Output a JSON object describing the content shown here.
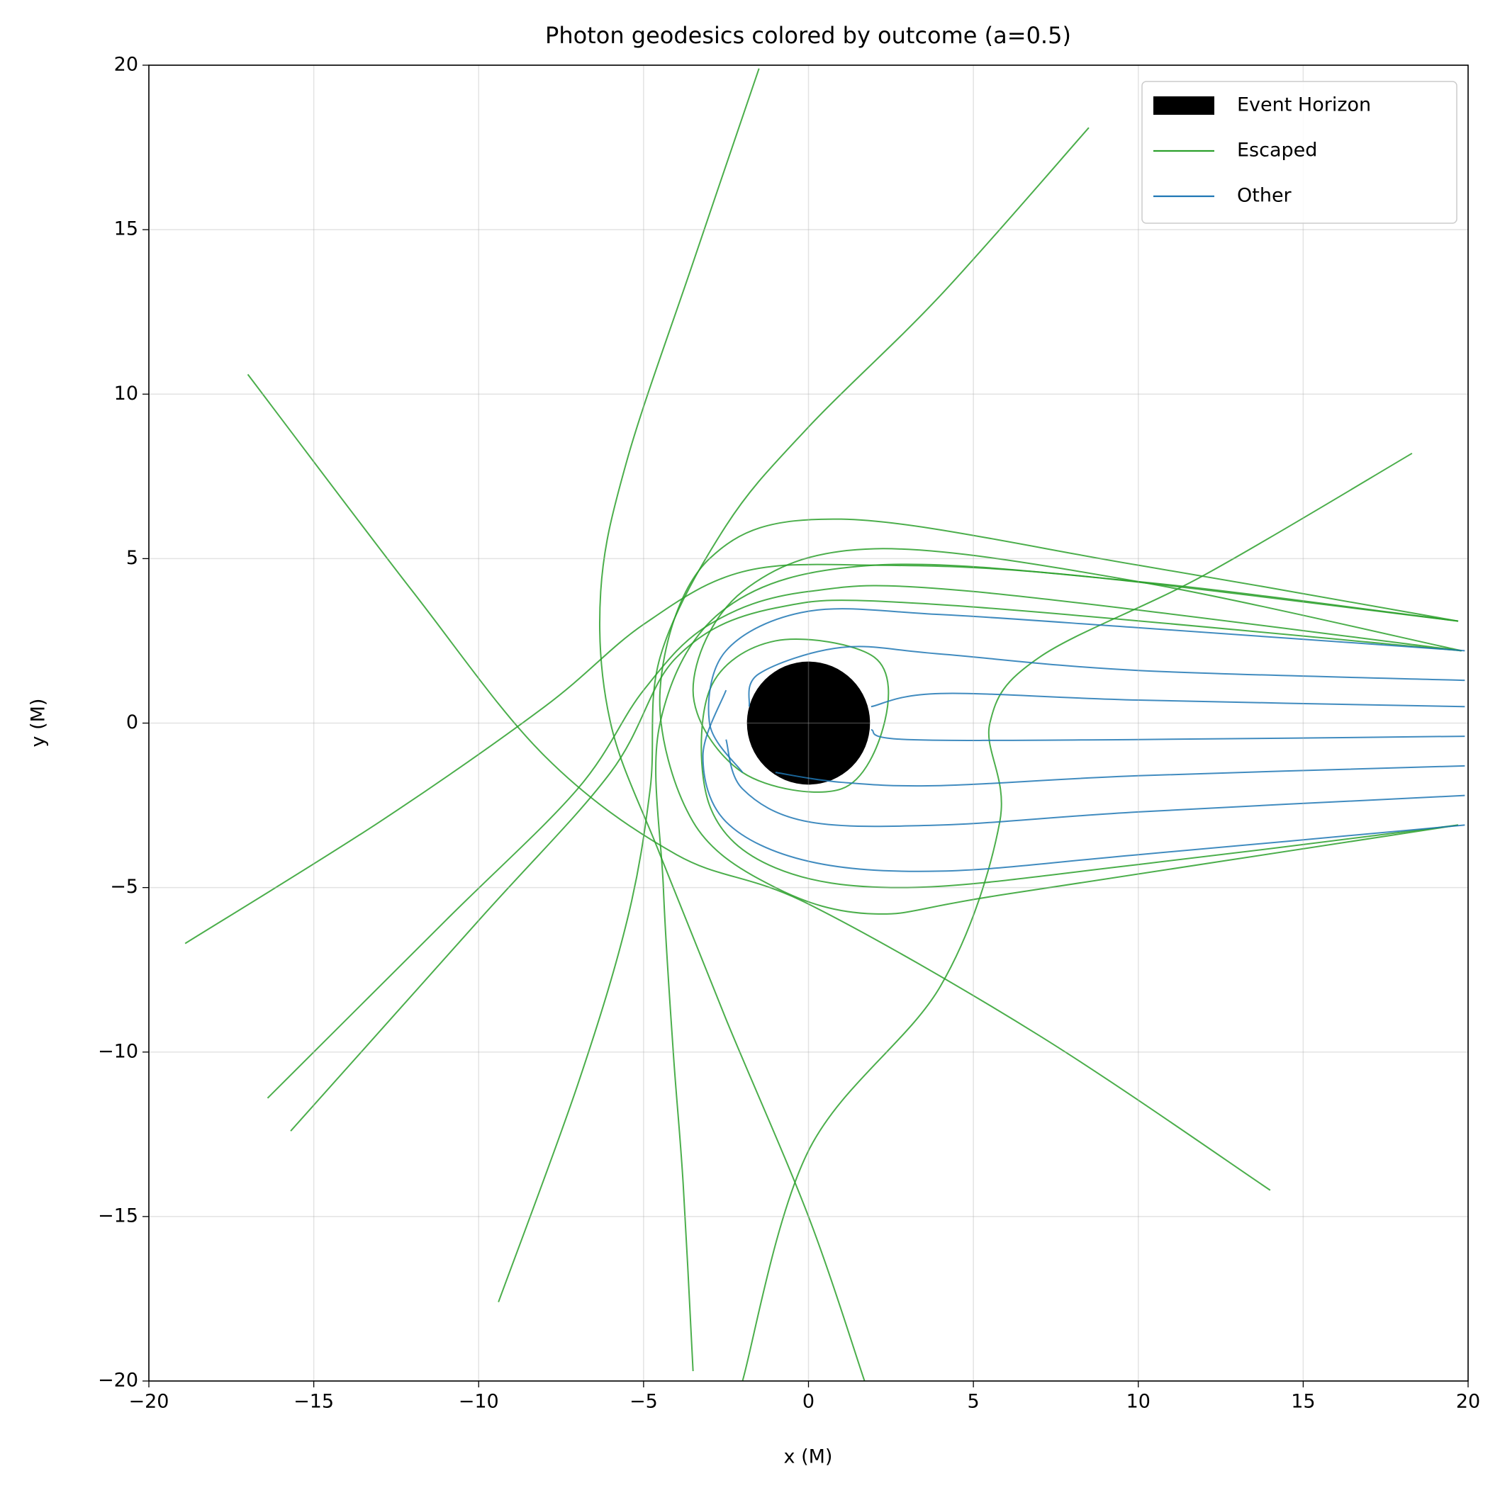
{
  "chart_data": {
    "type": "trajectories",
    "title": "Photon geodesics colored by outcome (a=0.5)",
    "xlabel": "x (M)",
    "ylabel": "y (M)",
    "xlim": [
      -20,
      20
    ],
    "ylim": [
      -20,
      20
    ],
    "xticks": [
      {
        "value": -20,
        "label": "−20"
      },
      {
        "value": -15,
        "label": "−15"
      },
      {
        "value": -10,
        "label": "−10"
      },
      {
        "value": -5,
        "label": "−5"
      },
      0,
      5,
      10,
      15,
      20
    ],
    "yticks": [
      {
        "value": -20,
        "label": "−20"
      },
      {
        "value": -15,
        "label": "−15"
      },
      {
        "value": -10,
        "label": "−10"
      },
      {
        "value": -5,
        "label": "−5"
      },
      0,
      5,
      10,
      15,
      20
    ],
    "grid": true,
    "legend": "upper right",
    "horizon": {
      "name": "Event Horizon",
      "radius": 1.866,
      "color": "#000000"
    },
    "series": [
      {
        "name": "Escaped",
        "color": "#2ca02c",
        "lines": [
          {
            "x": [
              -1.5,
              -3.5,
              -5.5,
              -6.3,
              -6,
              -4.5,
              -2.5,
              0,
              1.7
            ],
            "y": [
              19.9,
              14,
              8,
              4,
              0,
              -4,
              -9,
              -15,
              -20
            ]
          },
          {
            "x": [
              8.5,
              4,
              0,
              -2.5,
              -4.5,
              -4.8,
              -5.5,
              -7,
              -9.4
            ],
            "y": [
              18.1,
              13,
              9,
              6,
              2,
              -2,
              -6,
              -11,
              -17.6
            ]
          },
          {
            "x": [
              19.7,
              10,
              2,
              -2.5,
              -4.5,
              -4.4,
              -4.1,
              -3.8,
              -3.5
            ],
            "y": [
              3.1,
              4.3,
              4.8,
              3.5,
              0,
              -5,
              -10,
              -14,
              -19.7
            ]
          },
          {
            "x": [
              -17,
              -12,
              -8,
              -4,
              0,
              7,
              14
            ],
            "y": [
              10.6,
              4,
              -1,
              -4,
              -5.5,
              -9.5,
              -14.2
            ]
          },
          {
            "x": [
              18.3,
              12,
              7,
              5.5,
              5.8,
              4,
              0,
              -2
            ],
            "y": [
              8.2,
              4.5,
              2,
              0,
              -3,
              -8,
              -13,
              -20
            ]
          },
          {
            "x": [
              -18.9,
              -13,
              -8,
              -5,
              -2,
              2,
              8,
              19.7
            ],
            "y": [
              -6.7,
              -3,
              0.5,
              3,
              4.6,
              4.8,
              4.5,
              3.1
            ]
          },
          {
            "x": [
              -16.4,
              -11,
              -7,
              -5,
              -3,
              0,
              5,
              19.8
            ],
            "y": [
              -11.4,
              -6,
              -2,
              1,
              3,
              4,
              4,
              2.2
            ]
          },
          {
            "x": [
              -15.7,
              -10,
              -6,
              -4,
              -1,
              4,
              19.8
            ],
            "y": [
              -12.4,
              -6,
              -1.5,
              2,
              3.5,
              3.6,
              2.2
            ]
          },
          {
            "x": [
              19.7,
              10,
              1,
              -3,
              -4.5,
              -3.5,
              -1,
              2,
              6,
              19.7
            ],
            "y": [
              3.1,
              4.8,
              6.2,
              5,
              1,
              -3,
              -5,
              -5.8,
              -5.2,
              -3.1
            ]
          },
          {
            "x": [
              19.7,
              10,
              3,
              -1,
              -3,
              -3,
              -1,
              2,
              2.3,
              1,
              -2,
              -3.5,
              -2,
              2,
              10,
              19.8
            ],
            "y": [
              -3.1,
              -4.3,
              -5,
              -4.4,
              -2.5,
              1,
              2.5,
              2,
              0,
              -2,
              -1.5,
              1,
              4,
              5.3,
              4.3,
              2.2
            ]
          }
        ]
      },
      {
        "name": "Other",
        "color": "#1f77b4",
        "lines": [
          {
            "x": [
              19.9,
              10,
              4,
              1.9
            ],
            "y": [
              0.5,
              0.7,
              0.9,
              0.5
            ]
          },
          {
            "x": [
              19.9,
              10,
              3,
              1.9
            ],
            "y": [
              -0.4,
              -0.5,
              -0.5,
              -0.2
            ]
          },
          {
            "x": [
              19.9,
              10,
              4,
              1,
              -1.5,
              -1.8
            ],
            "y": [
              1.3,
              1.6,
              2.1,
              2.3,
              1.5,
              0.5
            ]
          },
          {
            "x": [
              19.9,
              10,
              4,
              1,
              -1
            ],
            "y": [
              -1.3,
              -1.6,
              -1.9,
              -1.8,
              -1.5
            ]
          },
          {
            "x": [
              19.9,
              10,
              4,
              0,
              -2.5,
              -3,
              -2
            ],
            "y": [
              2.2,
              2.9,
              3.3,
              3.4,
              2.2,
              0,
              -1.5
            ]
          },
          {
            "x": [
              19.9,
              10,
              4,
              0,
              -2,
              -2.5
            ],
            "y": [
              -2.2,
              -2.7,
              -3.1,
              -3,
              -2,
              -0.5
            ]
          },
          {
            "x": [
              19.9,
              10,
              4,
              0,
              -2.5,
              -3.2,
              -2.5
            ],
            "y": [
              -3.1,
              -4,
              -4.5,
              -4.2,
              -3,
              -1,
              1
            ]
          }
        ]
      }
    ]
  }
}
